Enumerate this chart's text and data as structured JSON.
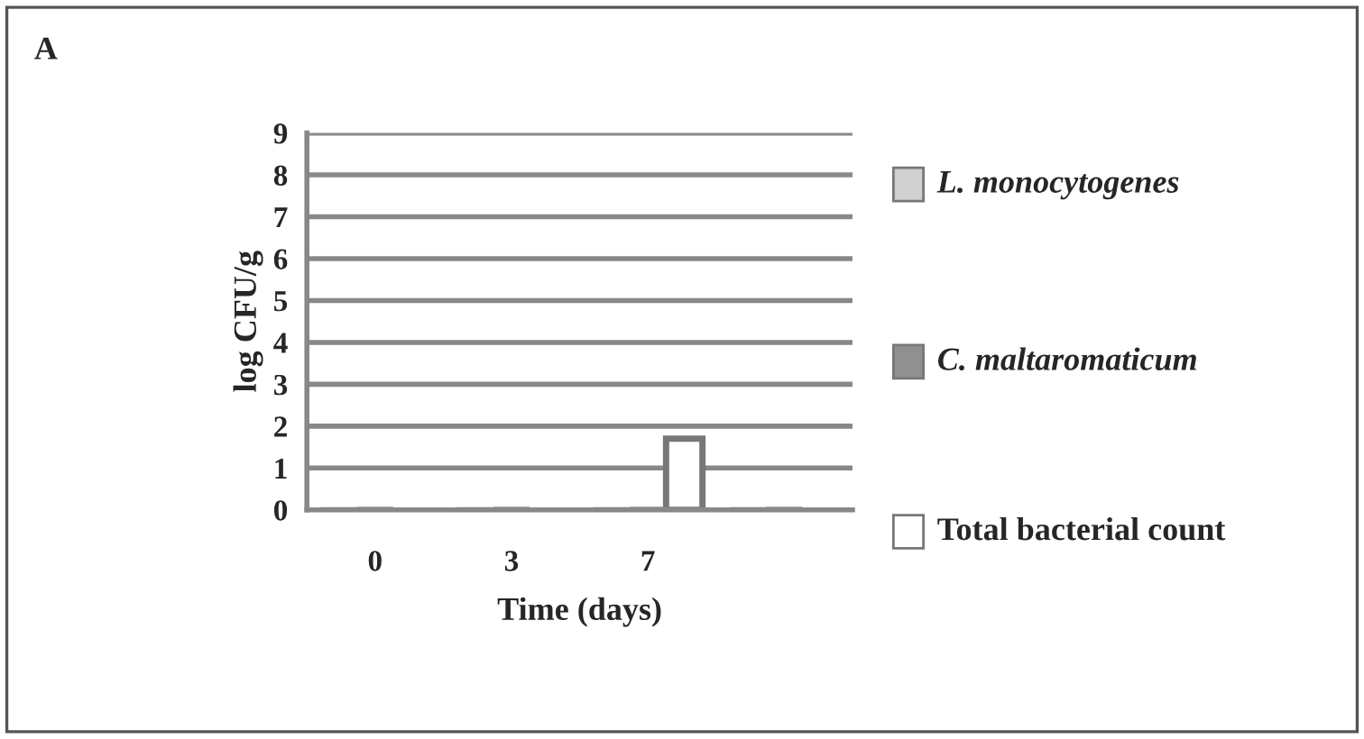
{
  "chart_data": {
    "type": "bar",
    "title": "A",
    "xlabel": "Time (days)",
    "ylabel": "log CFU/g",
    "categories": [
      "0",
      "3",
      "7",
      null
    ],
    "series": [
      {
        "name": "L. monocytogenes",
        "color": "#d0d0d0",
        "values": [
          0,
          0,
          0,
          0
        ]
      },
      {
        "name": "C. maltaromaticum",
        "color": "#909090",
        "values": [
          0,
          0,
          0,
          0
        ]
      },
      {
        "name": "Total bacterial count",
        "color": "#ffffff",
        "values": [
          0,
          0,
          1.7,
          0
        ]
      }
    ],
    "ylim": [
      0,
      9
    ],
    "yticks": [
      0,
      1,
      2,
      3,
      4,
      5,
      6,
      7,
      8,
      9
    ],
    "grid": "y",
    "legend": "right"
  }
}
